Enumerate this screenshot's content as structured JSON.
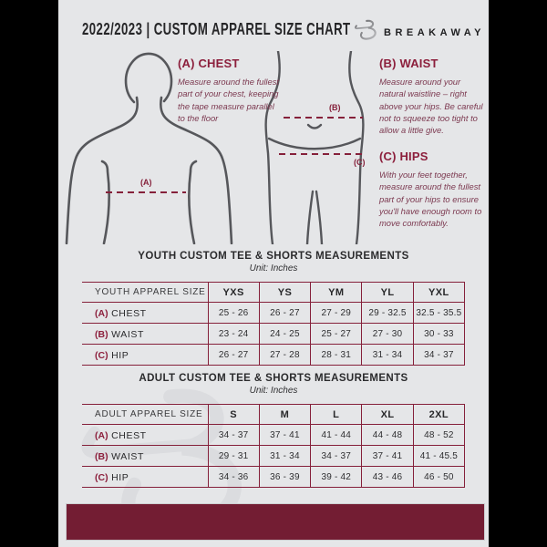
{
  "colors": {
    "maroon": "#731D33",
    "table_line": "#85203A",
    "heading_accent": "#8C1F3C",
    "guide_text": "#7C3950",
    "page_bg": "#E5E6E8",
    "figure_stroke": "#56575B"
  },
  "header": {
    "title": "2022/2023  |  CUSTOM APPAREL SIZE CHART",
    "brand": "BREAKAWAY"
  },
  "guide": {
    "chest": {
      "heading": "(A) CHEST",
      "body": "Measure around the fullest part of your chest, keeping the tape measure parallel to the floor"
    },
    "waist": {
      "heading": "(B) WAIST",
      "body": "Measure around your natural waistline – right above your hips. Be careful not to squeeze too tight to allow a little give."
    },
    "hips": {
      "heading": "(C) HIPS",
      "body": "With your feet together, measure around the fullest part of your hips to ensure you'll have enough room to move comfortably."
    },
    "markers": {
      "a": "(A)",
      "b": "(B)",
      "c": "(C)"
    }
  },
  "youth_table": {
    "title": "YOUTH CUSTOM TEE & SHORTS MEASUREMENTS",
    "unit": "Unit: Inches",
    "header_row": [
      "YOUTH APPAREL SIZE",
      "YXS",
      "YS",
      "YM",
      "YL",
      "YXL"
    ],
    "rows": [
      {
        "prefix": "(A)",
        "label": "CHEST",
        "values": [
          "25 - 26",
          "26 - 27",
          "27 - 29",
          "29 - 32.5",
          "32.5 - 35.5"
        ]
      },
      {
        "prefix": "(B)",
        "label": "WAIST",
        "values": [
          "23 - 24",
          "24 - 25",
          "25 - 27",
          "27 - 30",
          "30 - 33"
        ]
      },
      {
        "prefix": "(C)",
        "label": "HIP",
        "values": [
          "26 - 27",
          "27 - 28",
          "28 - 31",
          "31 - 34",
          "34 - 37"
        ]
      }
    ]
  },
  "adult_table": {
    "title": "ADULT CUSTOM TEE & SHORTS MEASUREMENTS",
    "unit": "Unit: Inches",
    "header_row": [
      "ADULT APPAREL SIZE",
      "S",
      "M",
      "L",
      "XL",
      "2XL"
    ],
    "rows": [
      {
        "prefix": "(A)",
        "label": "CHEST",
        "values": [
          "34 - 37",
          "37 - 41",
          "41 - 44",
          "44 - 48",
          "48 - 52"
        ]
      },
      {
        "prefix": "(B)",
        "label": "WAIST",
        "values": [
          "29 - 31",
          "31 - 34",
          "34 - 37",
          "37 - 41",
          "41 - 45.5"
        ]
      },
      {
        "prefix": "(C)",
        "label": "HIP",
        "values": [
          "34 - 36",
          "36 - 39",
          "39 - 42",
          "43 - 46",
          "46 - 50"
        ]
      }
    ]
  }
}
